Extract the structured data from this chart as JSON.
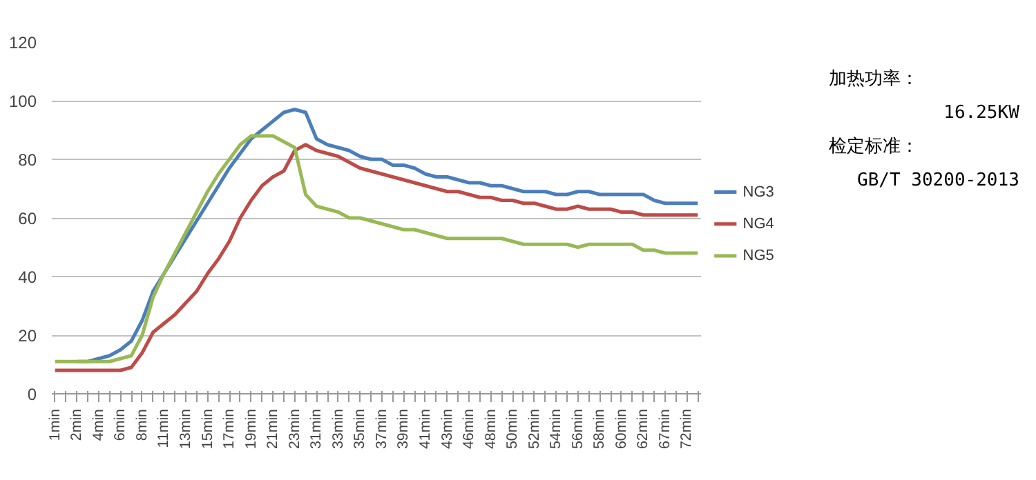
{
  "chart_data": {
    "type": "line",
    "categories": [
      "1min",
      null,
      "2min",
      null,
      "4min",
      null,
      "6min",
      null,
      "8min",
      null,
      "11min",
      null,
      "13min",
      null,
      "15min",
      null,
      "17min",
      null,
      "19min",
      null,
      "21min",
      null,
      "23min",
      null,
      "31min",
      null,
      "33min",
      null,
      "35min",
      null,
      "37min",
      null,
      "39min",
      null,
      "41min",
      null,
      "43min",
      null,
      "46min",
      null,
      "48min",
      null,
      "50min",
      null,
      "52min",
      null,
      "54min",
      null,
      "56min",
      null,
      "58min",
      null,
      "60min",
      null,
      "62min",
      null,
      "67min",
      null,
      "72min",
      null
    ],
    "series": [
      {
        "name": "NG3",
        "color": "#4a7ebb",
        "values": [
          null,
          null,
          11,
          11,
          12,
          13,
          15,
          18,
          25,
          35,
          41,
          47,
          53,
          59,
          65,
          71,
          77,
          82,
          87,
          90,
          93,
          96,
          97,
          96,
          87,
          85,
          84,
          83,
          81,
          80,
          80,
          78,
          78,
          77,
          75,
          74,
          74,
          73,
          72,
          72,
          71,
          71,
          70,
          69,
          69,
          69,
          68,
          68,
          69,
          69,
          68,
          68,
          68,
          68,
          68,
          66,
          65,
          65,
          65,
          65
        ]
      },
      {
        "name": "NG4",
        "color": "#be4b48",
        "values": [
          8,
          8,
          8,
          8,
          8,
          8,
          8,
          9,
          14,
          21,
          24,
          27,
          31,
          35,
          41,
          46,
          52,
          60,
          66,
          71,
          74,
          76,
          83,
          85,
          83,
          82,
          81,
          79,
          77,
          76,
          75,
          74,
          73,
          72,
          71,
          70,
          69,
          69,
          68,
          67,
          67,
          66,
          66,
          65,
          65,
          64,
          63,
          63,
          64,
          63,
          63,
          63,
          62,
          62,
          61,
          61,
          61,
          61,
          61,
          61
        ]
      },
      {
        "name": "NG5",
        "color": "#98b954",
        "values": [
          11,
          11,
          11,
          11,
          11,
          11,
          12,
          13,
          20,
          33,
          41,
          48,
          55,
          62,
          69,
          75,
          80,
          85,
          88,
          88,
          88,
          86,
          84,
          68,
          64,
          63,
          62,
          60,
          60,
          59,
          58,
          57,
          56,
          56,
          55,
          54,
          53,
          53,
          53,
          53,
          53,
          53,
          52,
          51,
          51,
          51,
          51,
          51,
          50,
          51,
          51,
          51,
          51,
          51,
          49,
          49,
          48,
          48,
          48,
          48
        ]
      }
    ],
    "ylim": [
      0,
      120
    ],
    "yticks": [
      0,
      20,
      40,
      60,
      80,
      100,
      120
    ],
    "grid": "y",
    "legend": "right",
    "line_style": "solid",
    "annotations": [
      "加热功率：",
      "16.25KW",
      "检定标准：",
      "GB/T 30200-2013"
    ]
  }
}
